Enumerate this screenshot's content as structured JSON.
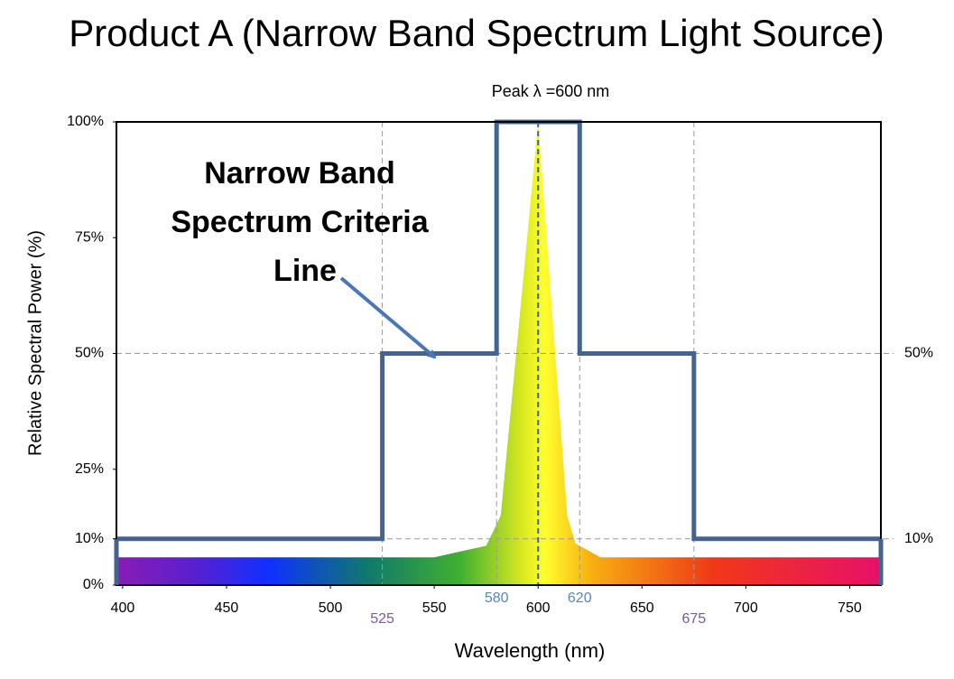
{
  "chart_data": {
    "type": "line",
    "title": "Product A (Narrow Band Spectrum Light Source)",
    "x_label": "Wavelength (nm)",
    "y_label": "Relative Spectral Power (%)",
    "peak_label": "Peak λ =600 nm",
    "peak_wavelength": 600,
    "annotation": [
      "Narrow Band",
      "Spectrum Criteria",
      "Line"
    ],
    "xlim": [
      397,
      765
    ],
    "xticks": [
      400,
      450,
      500,
      550,
      600,
      650,
      700,
      750
    ],
    "ylim": [
      0,
      100
    ],
    "yticks": [
      {
        "value": 0,
        "label": "0%"
      },
      {
        "value": 10,
        "label": "10%"
      },
      {
        "value": 25,
        "label": "25%"
      },
      {
        "value": 50,
        "label": "50%"
      },
      {
        "value": 75,
        "label": "75%"
      },
      {
        "value": 100,
        "label": "100%"
      }
    ],
    "y2lim": [
      0,
      100
    ],
    "y2ticks": [
      {
        "value": 10,
        "label": "10%"
      },
      {
        "value": 50,
        "label": "50%"
      }
    ],
    "marker_x": [
      525,
      580,
      620,
      675
    ],
    "marker_colors": [
      "#7a5a9a",
      "#5b84b8",
      "#5b84b8",
      "#7a5a9a"
    ],
    "series": [
      {
        "name": "Narrow Band Spectrum Criteria Line",
        "color": "#44638f",
        "x": [
          397,
          525,
          525,
          580,
          580,
          620,
          620,
          675,
          675,
          765
        ],
        "values": [
          10,
          10,
          50,
          50,
          100,
          100,
          50,
          50,
          10,
          10
        ]
      },
      {
        "name": "Spectrum",
        "color": "#ffe800",
        "x": [
          397,
          550,
          575,
          582,
          600,
          614,
          618,
          630,
          765
        ],
        "values": [
          6,
          6,
          8.5,
          15,
          100,
          15,
          9,
          6,
          6
        ]
      }
    ]
  }
}
